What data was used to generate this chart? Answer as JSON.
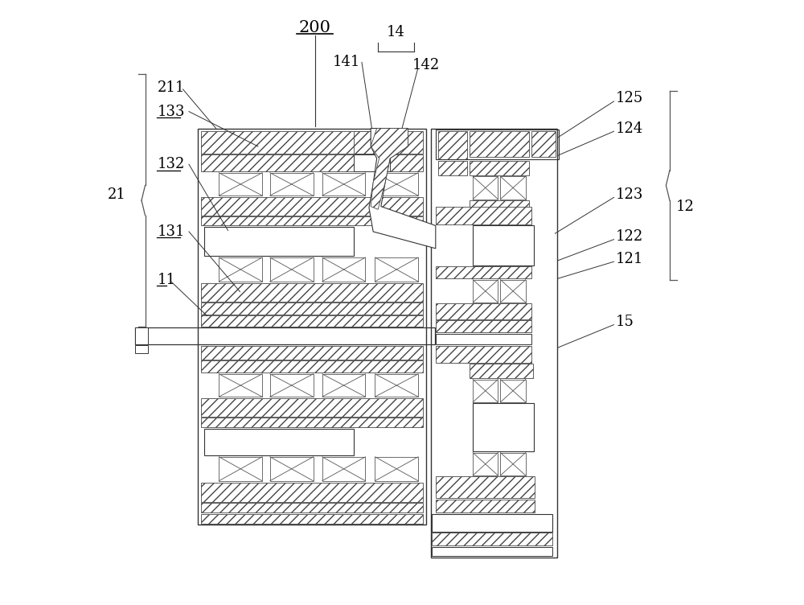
{
  "figsize": [
    10.0,
    7.52
  ],
  "dpi": 100,
  "background_color": "#ffffff",
  "line_color": "#333333",
  "hatch_color": "#555555"
}
